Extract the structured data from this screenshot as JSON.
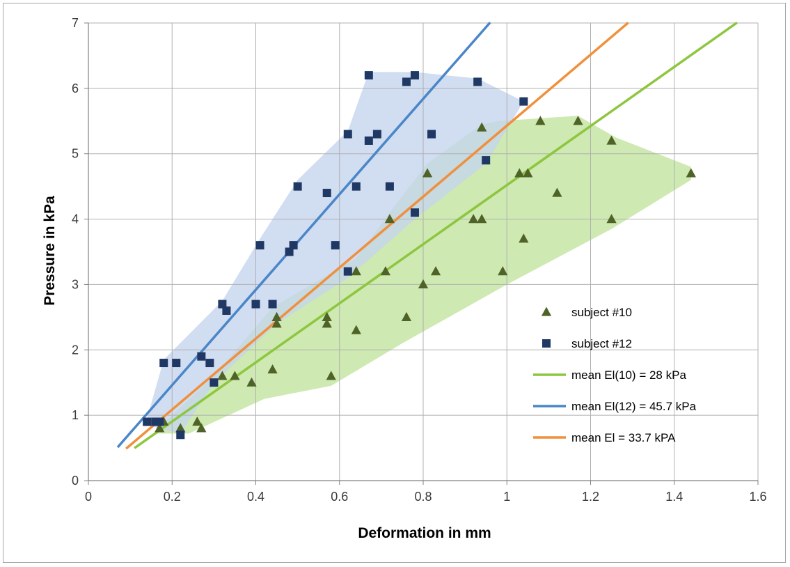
{
  "chart_data": {
    "type": "scatter",
    "xlabel": "Deformation in mm",
    "ylabel": "Pressure in kPa",
    "xlim": [
      0,
      1.6
    ],
    "ylim": [
      0,
      7
    ],
    "x_ticks": [
      "0",
      "0.2",
      "0.4",
      "0.6",
      "0.8",
      "1",
      "1.2",
      "1.4",
      "1.6"
    ],
    "y_ticks": [
      "0",
      "1",
      "2",
      "3",
      "4",
      "5",
      "6",
      "7"
    ],
    "grid": true,
    "legend_position": "bottom-right",
    "colors": {
      "subject10_marker": "#4f6228",
      "subject12_marker": "#1f3864",
      "subject10_band": "#c6e5a3",
      "subject12_band": "#c5d5ee",
      "fit10": "#8dc63f",
      "fit12": "#4a86c8",
      "fit_all": "#f0903c"
    },
    "scatter_series": [
      {
        "name": "subject #10",
        "marker": "triangle",
        "points": [
          [
            0.17,
            0.8
          ],
          [
            0.18,
            0.9
          ],
          [
            0.22,
            0.8
          ],
          [
            0.26,
            0.9
          ],
          [
            0.27,
            0.8
          ],
          [
            0.32,
            1.6
          ],
          [
            0.35,
            1.6
          ],
          [
            0.39,
            1.5
          ],
          [
            0.44,
            1.7
          ],
          [
            0.45,
            2.5
          ],
          [
            0.45,
            2.4
          ],
          [
            0.57,
            2.5
          ],
          [
            0.57,
            2.4
          ],
          [
            0.58,
            1.6
          ],
          [
            0.64,
            2.3
          ],
          [
            0.64,
            3.2
          ],
          [
            0.71,
            3.2
          ],
          [
            0.72,
            4.0
          ],
          [
            0.76,
            2.5
          ],
          [
            0.8,
            3.0
          ],
          [
            0.81,
            4.7
          ],
          [
            0.83,
            3.2
          ],
          [
            0.92,
            4.0
          ],
          [
            0.94,
            4.0
          ],
          [
            0.94,
            5.4
          ],
          [
            0.99,
            3.2
          ],
          [
            1.03,
            4.7
          ],
          [
            1.04,
            3.7
          ],
          [
            1.05,
            4.7
          ],
          [
            1.08,
            5.5
          ],
          [
            1.12,
            4.4
          ],
          [
            1.17,
            5.5
          ],
          [
            1.25,
            5.2
          ],
          [
            1.25,
            4.0
          ],
          [
            1.44,
            4.7
          ]
        ]
      },
      {
        "name": "subject #12",
        "marker": "square",
        "points": [
          [
            0.14,
            0.9
          ],
          [
            0.16,
            0.9
          ],
          [
            0.17,
            0.9
          ],
          [
            0.18,
            1.8
          ],
          [
            0.21,
            1.8
          ],
          [
            0.22,
            0.7
          ],
          [
            0.27,
            1.9
          ],
          [
            0.29,
            1.8
          ],
          [
            0.3,
            1.5
          ],
          [
            0.32,
            2.7
          ],
          [
            0.33,
            2.6
          ],
          [
            0.4,
            2.7
          ],
          [
            0.41,
            3.6
          ],
          [
            0.44,
            2.7
          ],
          [
            0.48,
            3.5
          ],
          [
            0.49,
            3.6
          ],
          [
            0.5,
            4.5
          ],
          [
            0.57,
            4.4
          ],
          [
            0.59,
            3.6
          ],
          [
            0.62,
            3.2
          ],
          [
            0.62,
            5.3
          ],
          [
            0.64,
            4.5
          ],
          [
            0.67,
            6.2
          ],
          [
            0.67,
            5.2
          ],
          [
            0.69,
            5.3
          ],
          [
            0.72,
            4.5
          ],
          [
            0.76,
            6.1
          ],
          [
            0.78,
            6.2
          ],
          [
            0.78,
            4.1
          ],
          [
            0.82,
            5.3
          ],
          [
            0.93,
            6.1
          ],
          [
            0.95,
            4.9
          ],
          [
            1.04,
            5.8
          ]
        ]
      }
    ],
    "bands": [
      {
        "series": "subject #10",
        "polygon": [
          [
            0.16,
            0.72
          ],
          [
            0.24,
            0.72
          ],
          [
            0.42,
            1.25
          ],
          [
            0.58,
            1.45
          ],
          [
            0.75,
            2.1
          ],
          [
            1.0,
            3.0
          ],
          [
            1.25,
            3.85
          ],
          [
            1.44,
            4.6
          ],
          [
            1.44,
            4.8
          ],
          [
            1.26,
            5.25
          ],
          [
            1.17,
            5.58
          ],
          [
            0.98,
            5.5
          ],
          [
            0.94,
            5.45
          ],
          [
            0.81,
            4.85
          ],
          [
            0.72,
            4.1
          ],
          [
            0.64,
            3.4
          ],
          [
            0.44,
            2.65
          ],
          [
            0.3,
            1.6
          ],
          [
            0.17,
            0.82
          ]
        ]
      },
      {
        "series": "subject #12",
        "polygon": [
          [
            0.14,
            0.85
          ],
          [
            0.22,
            0.72
          ],
          [
            0.3,
            1.5
          ],
          [
            0.45,
            2.4
          ],
          [
            0.62,
            3.1
          ],
          [
            0.78,
            4.0
          ],
          [
            0.95,
            4.85
          ],
          [
            1.04,
            5.8
          ],
          [
            0.93,
            6.15
          ],
          [
            0.78,
            6.25
          ],
          [
            0.67,
            6.25
          ],
          [
            0.62,
            5.35
          ],
          [
            0.5,
            4.6
          ],
          [
            0.41,
            3.7
          ],
          [
            0.32,
            2.75
          ],
          [
            0.18,
            1.85
          ],
          [
            0.14,
            0.95
          ]
        ]
      }
    ],
    "fit_series": [
      {
        "name": "mean El(10) = 28 kPa",
        "slope": 4.52,
        "x_range": [
          0.11,
          1.55
        ]
      },
      {
        "name": "mean El(12) = 45.7 kPa",
        "slope": 7.3,
        "x_range": [
          0.07,
          0.96
        ]
      },
      {
        "name": "mean El = 33.7 kPA",
        "slope": 5.43,
        "x_range": [
          0.09,
          1.29
        ]
      }
    ],
    "legend": [
      {
        "label": "subject #10",
        "kind": "triangle"
      },
      {
        "label": "subject #12",
        "kind": "square"
      },
      {
        "label": "mean El(10) = 28 kPa",
        "kind": "line",
        "color_key": "fit10"
      },
      {
        "label": "mean El(12) = 45.7 kPa",
        "kind": "line",
        "color_key": "fit12"
      },
      {
        "label": "mean El = 33.7 kPA",
        "kind": "line",
        "color_key": "fit_all"
      }
    ]
  }
}
